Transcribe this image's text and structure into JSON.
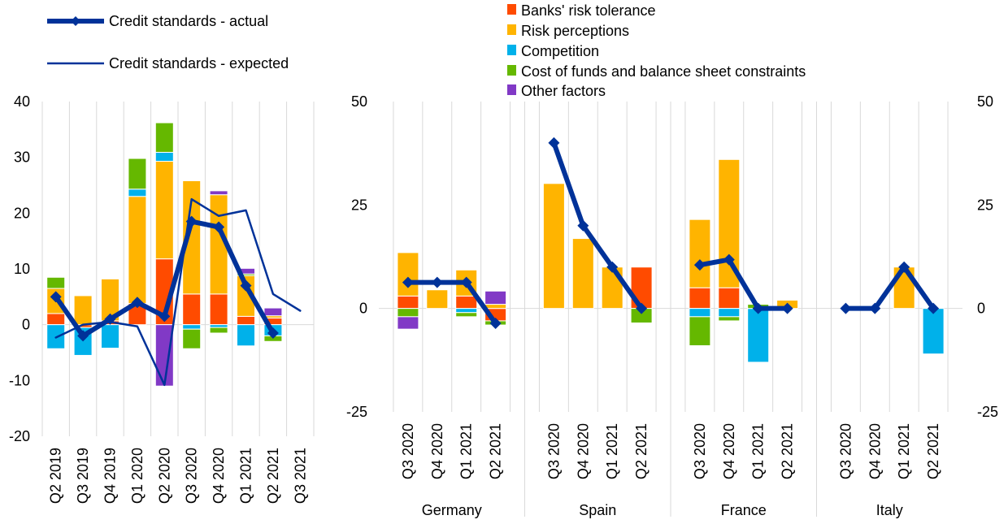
{
  "colors": {
    "banks_risk_tolerance": "#FF4B00",
    "risk_perceptions": "#FFB400",
    "competition": "#00B1EA",
    "cost_of_funds": "#65B800",
    "other_factors": "#8139C6",
    "actual": "#003299",
    "expected": "#003299",
    "grid": "#D9D9D9"
  },
  "legend": {
    "actual": "Credit standards - actual",
    "expected": "Credit standards - expected",
    "banks_risk_tolerance": "Banks' risk tolerance",
    "risk_perceptions": "Risk perceptions",
    "competition": "Competition",
    "cost_of_funds": "Cost of funds and balance sheet constraints",
    "other_factors": "Other factors"
  },
  "chart_data": [
    {
      "type": "bar",
      "stacked": true,
      "categories": [
        "Q2 2019",
        "Q3 2019",
        "Q4 2019",
        "Q1 2020",
        "Q2 2020",
        "Q3 2020",
        "Q4 2020",
        "Q1 2021",
        "Q2 2021",
        "Q3 2021"
      ],
      "ylim": [
        -20,
        40
      ],
      "yticks": [
        "-20",
        "-10",
        "0",
        "10",
        "20",
        "30",
        "40"
      ],
      "grid": "vertical",
      "series": [
        {
          "name": "Banks' risk tolerance",
          "key": "banks_risk_tolerance",
          "values": [
            2,
            -0.5,
            0.7,
            3.8,
            11.8,
            5.5,
            5.5,
            1.5,
            1.2,
            null
          ]
        },
        {
          "name": "Risk perceptions",
          "key": "risk_perceptions",
          "values": [
            4.5,
            5.2,
            7.5,
            19.2,
            17.5,
            20.3,
            17.8,
            7.3,
            0.4,
            null
          ]
        },
        {
          "name": "Competition",
          "key": "competition",
          "values": [
            -4.3,
            -5,
            -4.2,
            1.3,
            1.6,
            -0.8,
            -0.5,
            -3.8,
            -2,
            null
          ]
        },
        {
          "name": "Cost of funds and balance sheet constraints",
          "key": "cost_of_funds",
          "values": [
            2,
            0,
            0,
            5.5,
            5.3,
            -3.5,
            -1,
            0.3,
            -1,
            null
          ]
        },
        {
          "name": "Other factors",
          "key": "other_factors",
          "values": [
            0,
            0,
            0,
            0,
            -11,
            0,
            0.7,
            1,
            1.4,
            null
          ]
        }
      ],
      "lines": [
        {
          "name": "Credit standards - actual",
          "key": "actual",
          "values": [
            5,
            -2,
            1,
            4,
            1.5,
            18.5,
            17.5,
            7,
            -1.5,
            null
          ]
        },
        {
          "name": "Credit standards - expected",
          "key": "expected",
          "values": [
            -2.3,
            0,
            0.5,
            -0.3,
            -10.8,
            22.5,
            19.5,
            20.5,
            5.5,
            2.5
          ]
        }
      ]
    },
    {
      "type": "bar",
      "stacked": true,
      "groups": [
        "Germany",
        "Spain",
        "France",
        "Italy"
      ],
      "categories": [
        "Q3 2020",
        "Q4 2020",
        "Q1 2021",
        "Q2 2021"
      ],
      "ylim": [
        -25,
        50
      ],
      "yticks": [
        "-25",
        "0",
        "25",
        "50"
      ],
      "grid": "vertical",
      "series": [
        {
          "name": "Banks' risk tolerance",
          "key": "banks_risk_tolerance",
          "values": [
            [
              3,
              0,
              3,
              -3
            ],
            [
              0,
              0,
              0,
              10
            ],
            [
              5,
              5,
              0,
              0
            ],
            [
              0,
              0,
              0,
              0
            ]
          ]
        },
        {
          "name": "Risk perceptions",
          "key": "risk_perceptions",
          "values": [
            [
              10.5,
              4.5,
              6.3,
              1
            ],
            [
              30.2,
              16.9,
              10,
              0
            ],
            [
              16.5,
              31,
              0,
              2
            ],
            [
              0,
              0,
              10,
              0
            ]
          ]
        },
        {
          "name": "Competition",
          "key": "competition",
          "values": [
            [
              0,
              0,
              -1,
              0
            ],
            [
              0,
              0,
              0,
              0
            ],
            [
              -2,
              -2,
              -13,
              0
            ],
            [
              0,
              0,
              0,
              -11
            ]
          ]
        },
        {
          "name": "Cost of funds and balance sheet constraints",
          "key": "cost_of_funds",
          "values": [
            [
              -2,
              0,
              -1,
              -1
            ],
            [
              0,
              0,
              0,
              -3.5
            ],
            [
              -7,
              -1,
              1,
              0
            ],
            [
              0,
              0,
              0,
              0
            ]
          ]
        },
        {
          "name": "Other factors",
          "key": "other_factors",
          "values": [
            [
              -3,
              0,
              0,
              3.2
            ],
            [
              0,
              0,
              0,
              0
            ],
            [
              0,
              0,
              0,
              0
            ],
            [
              0,
              0,
              0,
              0
            ]
          ]
        }
      ],
      "lines": [
        {
          "name": "Credit standards - actual",
          "key": "actual",
          "values": [
            [
              6.3,
              6.3,
              6.3,
              -3.6
            ],
            [
              40,
              20,
              10,
              0
            ],
            [
              10.5,
              11.8,
              0,
              0
            ],
            [
              0,
              0,
              10,
              0
            ]
          ]
        }
      ]
    }
  ]
}
